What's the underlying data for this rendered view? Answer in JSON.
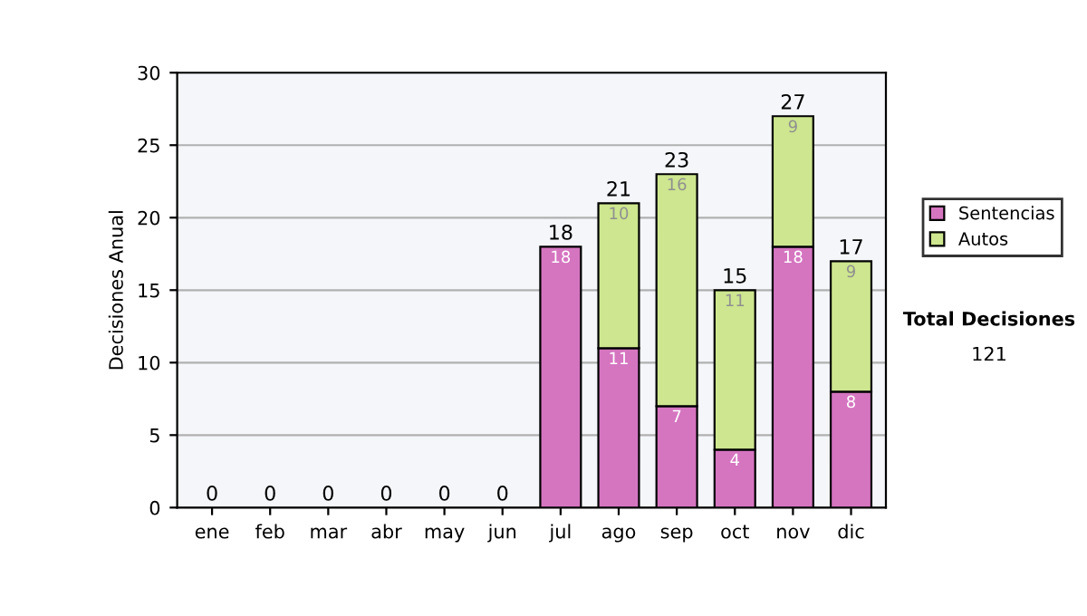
{
  "chart_data": {
    "type": "bar",
    "stacked": true,
    "ylabel": "Decisiones Anual",
    "categories": [
      "ene",
      "feb",
      "mar",
      "abr",
      "may",
      "jun",
      "jul",
      "ago",
      "sep",
      "oct",
      "nov",
      "dic"
    ],
    "series": [
      {
        "name": "Sentencias",
        "color": "#d575c0",
        "values": [
          0,
          0,
          0,
          0,
          0,
          0,
          18,
          11,
          7,
          4,
          18,
          8
        ],
        "value_labels": [
          null,
          null,
          null,
          null,
          null,
          null,
          "18",
          "11",
          "7",
          "4",
          "18",
          "8"
        ]
      },
      {
        "name": "Autos",
        "color": "#cde68f",
        "values": [
          0,
          0,
          0,
          0,
          0,
          0,
          0,
          10,
          16,
          11,
          9,
          9
        ],
        "value_labels": [
          null,
          null,
          null,
          null,
          null,
          null,
          null,
          "10",
          "16",
          "11",
          "9",
          "9"
        ]
      }
    ],
    "totals": [
      "0",
      "0",
      "0",
      "0",
      "0",
      "0",
      "18",
      "21",
      "23",
      "15",
      "27",
      "17"
    ],
    "ylim": [
      0,
      30
    ],
    "yticks": [
      0,
      5,
      10,
      15,
      20,
      25,
      30
    ],
    "grid": "y",
    "legend": "right",
    "annotations": [
      "Total Decisiones",
      "121"
    ]
  }
}
